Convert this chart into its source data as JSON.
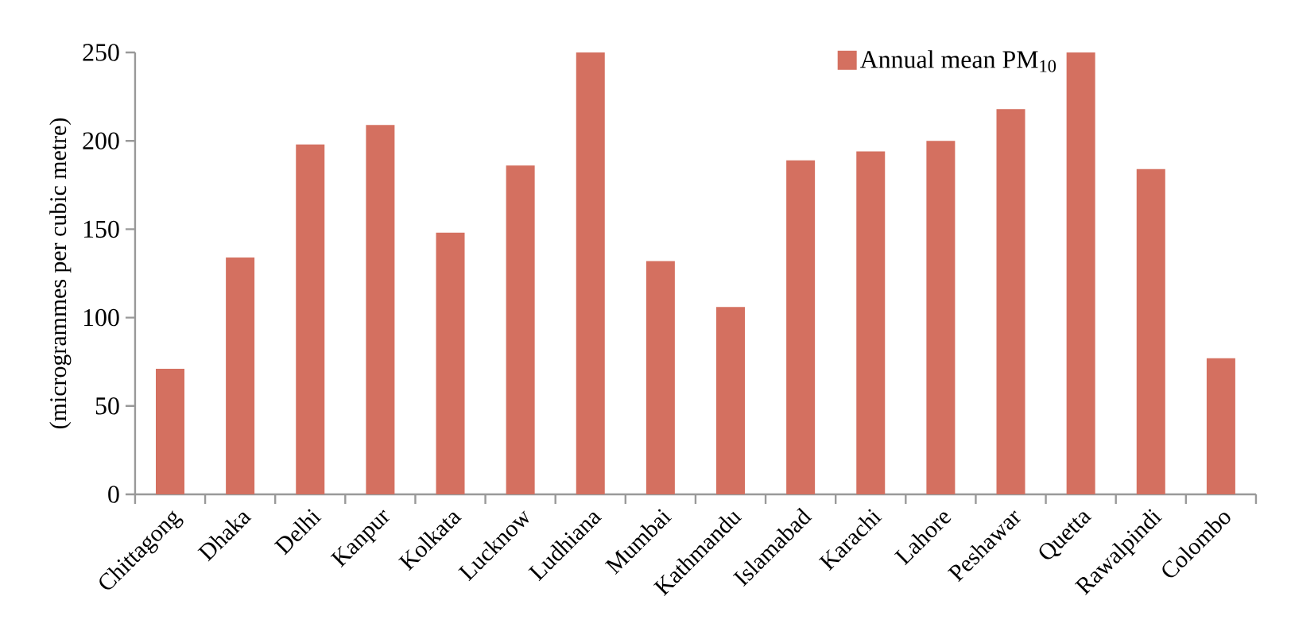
{
  "chart_data": {
    "type": "bar",
    "ylabel": "(microgrammes per cubic metre)",
    "categories": [
      "Chittagong",
      "Dhaka",
      "Delhi",
      "Kanpur",
      "Kolkata",
      "Lucknow",
      "Ludhiana",
      "Mumbai",
      "Kathmandu",
      "Islamabad",
      "Karachi",
      "Lahore",
      "Peshawar",
      "Quetta",
      "Rawalpindi",
      "Colombo"
    ],
    "series": [
      {
        "name": "Annual mean PM$_{10}$",
        "color": "#d47060",
        "values": [
          71,
          134,
          198,
          209,
          148,
          186,
          250,
          132,
          106,
          189,
          194,
          200,
          218,
          250,
          184,
          77
        ]
      }
    ],
    "ylim": [
      0,
      250
    ],
    "yticks": [
      0,
      50,
      100,
      150,
      200,
      250
    ],
    "grid": false,
    "legend": "top right"
  }
}
